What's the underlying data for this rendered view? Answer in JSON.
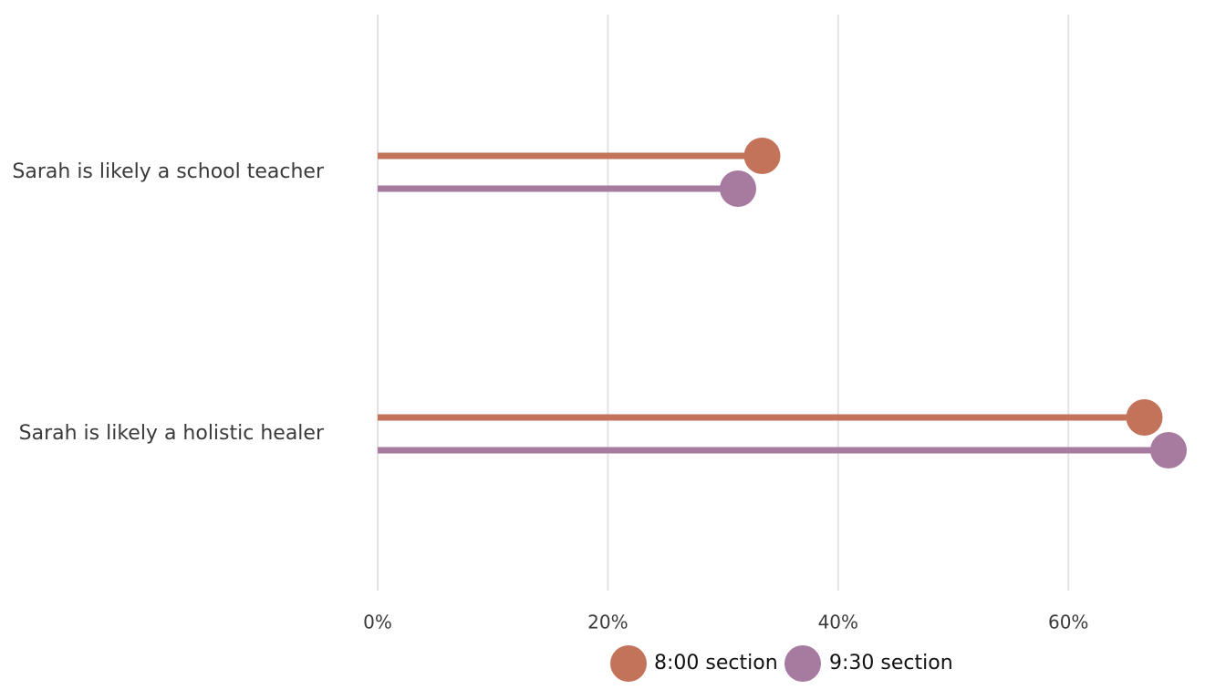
{
  "chart_data": {
    "type": "lollipop",
    "orientation": "horizontal",
    "categories": [
      "Sarah is likely a school teacher",
      "Sarah is likely a holistic healer"
    ],
    "series": [
      {
        "name": "8:00 section",
        "color": "#C4735B",
        "values": [
          0.334,
          0.666
        ]
      },
      {
        "name": "9:30 section",
        "color": "#A67B9F",
        "values": [
          0.313,
          0.687
        ]
      }
    ],
    "x_ticks": [
      0,
      0.2,
      0.4,
      0.6
    ],
    "x_tick_labels": [
      "0%",
      "20%",
      "40%",
      "60%"
    ],
    "xlim": [
      0,
      0.69
    ],
    "grid": "vertical-major",
    "legend_position": "bottom",
    "title": "",
    "xlabel": "",
    "ylabel": ""
  }
}
